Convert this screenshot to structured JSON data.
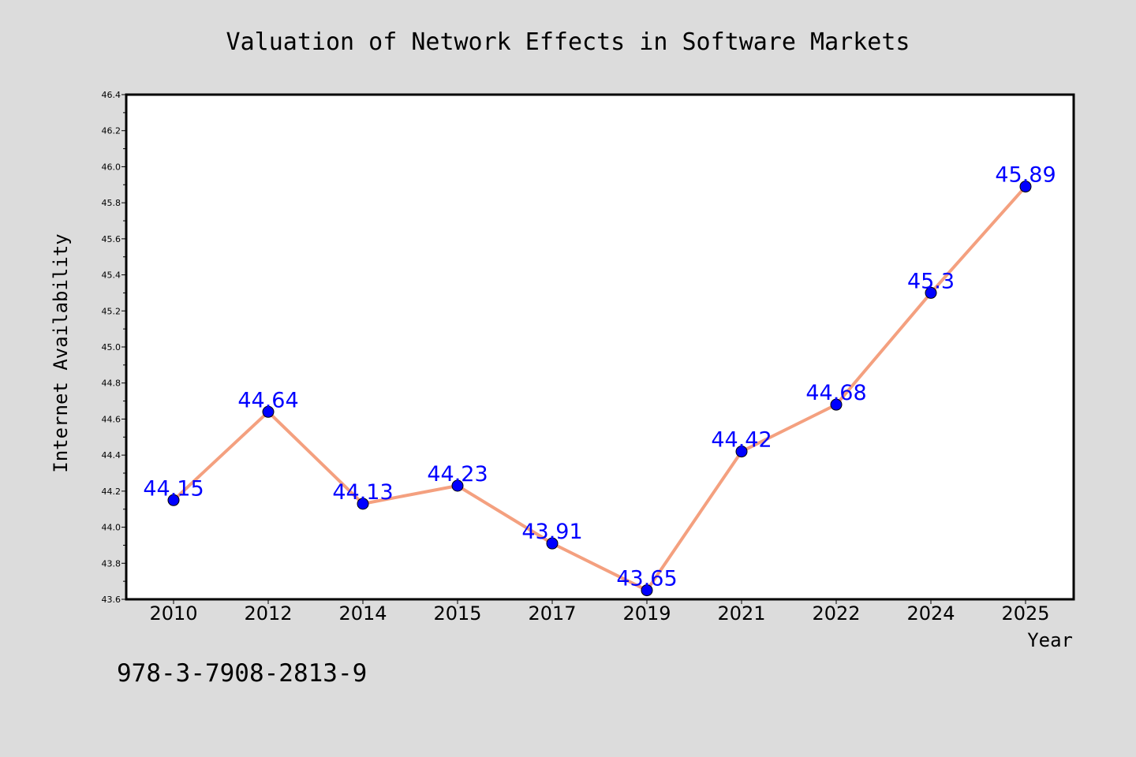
{
  "chart_data": {
    "type": "line",
    "title": "Valuation of Network Effects in Software Markets",
    "xlabel": "Year",
    "ylabel": "Internet Availability",
    "categories": [
      "2010",
      "2012",
      "2014",
      "2015",
      "2017",
      "2019",
      "2021",
      "2022",
      "2024",
      "2025"
    ],
    "series": [
      {
        "values": [
          44.15,
          44.64,
          44.13,
          44.23,
          43.91,
          43.65,
          44.42,
          44.68,
          45.3,
          45.89
        ]
      }
    ],
    "data_labels": [
      "44.15",
      "44.64",
      "44.13",
      "44.23",
      "43.91",
      "43.65",
      "44.42",
      "44.68",
      "45.3",
      "45.89"
    ],
    "ylim": [
      43.6,
      46.4
    ],
    "yticks": [
      "43.6",
      "43.8",
      "44.0",
      "44.2",
      "44.4",
      "44.6",
      "44.8",
      "45.0",
      "45.2",
      "45.4",
      "45.6",
      "45.8",
      "46.0",
      "46.2",
      "46.4"
    ],
    "grid": false,
    "legend": "none",
    "colors": {
      "line": "#f4a07f",
      "marker": "#0000ff",
      "label": "#0000ff",
      "background": "#dcdcdc",
      "plot_background": "#ffffff"
    }
  },
  "footer_text": "978-3-7908-2813-9"
}
